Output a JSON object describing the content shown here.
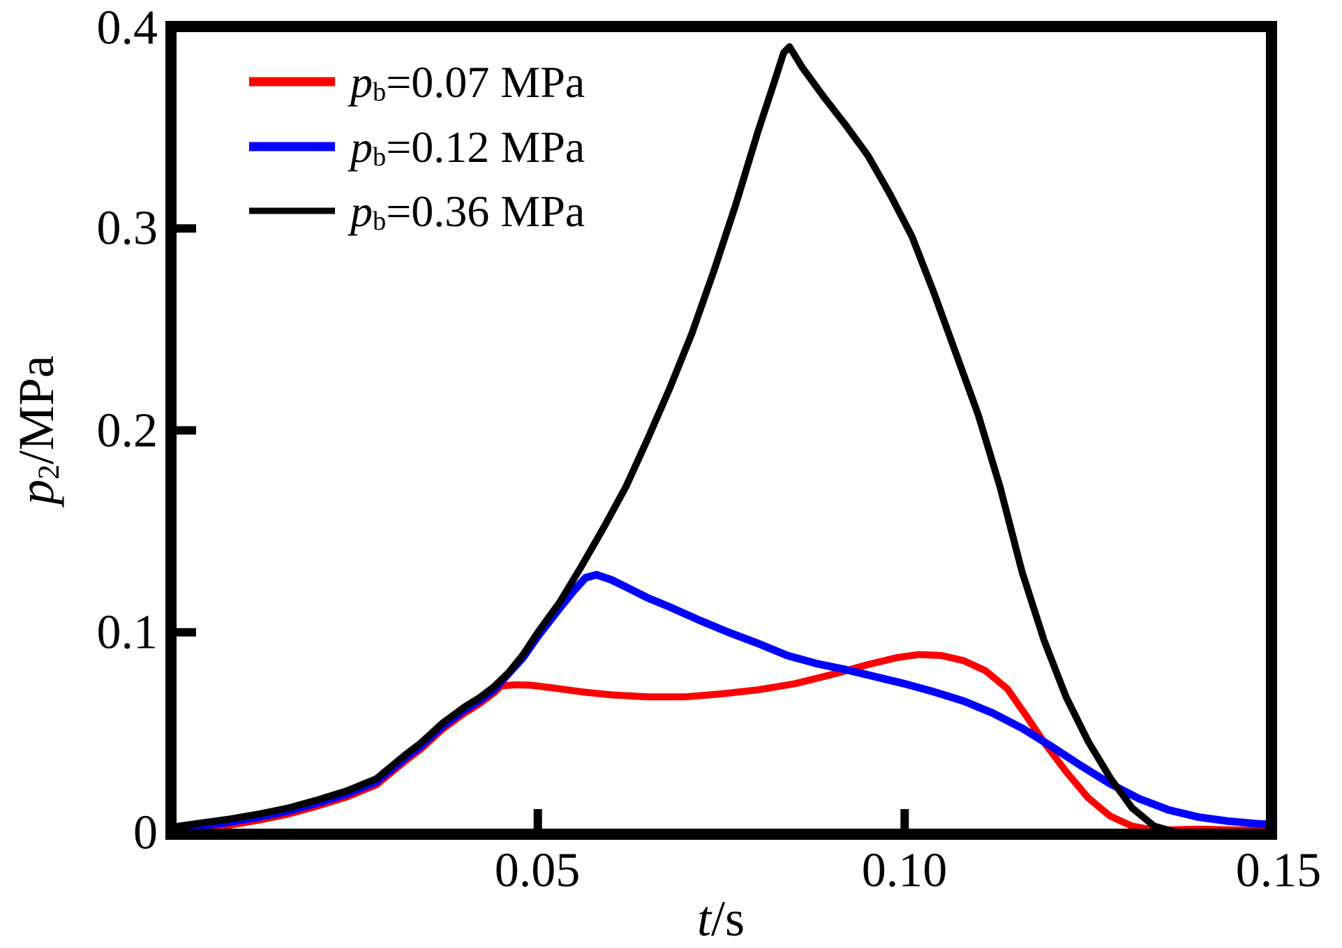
{
  "figure": {
    "background": "#ffffff",
    "frame_color": "#000000"
  },
  "axes": {
    "x_title": {
      "var": "t",
      "rest": "/s"
    },
    "y_title": {
      "var": "p",
      "sub": "2",
      "rest": "/MPa"
    }
  },
  "legend": {
    "items": [
      {
        "var": "p",
        "sub": "b",
        "rest": "=0.07 MPa",
        "color": "#ff0000"
      },
      {
        "var": "p",
        "sub": "b",
        "rest": "=0.12 MPa",
        "color": "#0000ff"
      },
      {
        "var": "p",
        "sub": "b",
        "rest": "=0.36 MPa",
        "color": "#000000"
      }
    ]
  },
  "chart_data": {
    "type": "line",
    "title": "",
    "xlabel": "t/s",
    "ylabel": "p2/MPa",
    "xlim": [
      0,
      0.15
    ],
    "ylim": [
      0,
      0.4
    ],
    "grid": false,
    "legend_position": "upper-left",
    "x_ticks": [
      {
        "value": 0.05,
        "label": "0.05",
        "stub": true
      },
      {
        "value": 0.1,
        "label": "0.10",
        "stub": true
      },
      {
        "value": 0.15,
        "label": "0.15",
        "stub": false
      }
    ],
    "y_ticks": [
      {
        "value": 0.0,
        "label": "0",
        "stub": false
      },
      {
        "value": 0.1,
        "label": "0.1",
        "stub": true
      },
      {
        "value": 0.2,
        "label": "0.2",
        "stub": true
      },
      {
        "value": 0.3,
        "label": "0.3",
        "stub": true
      },
      {
        "value": 0.4,
        "label": "0.4",
        "stub": false
      }
    ],
    "series": [
      {
        "name": "pb=0.07 MPa",
        "color": "#ff0000",
        "stroke_width": 10,
        "points": [
          [
            0.0,
            0.0005
          ],
          [
            0.004,
            0.0025
          ],
          [
            0.008,
            0.0045
          ],
          [
            0.012,
            0.007
          ],
          [
            0.016,
            0.01
          ],
          [
            0.02,
            0.014
          ],
          [
            0.024,
            0.0185
          ],
          [
            0.028,
            0.0245
          ],
          [
            0.032,
            0.0365
          ],
          [
            0.034,
            0.042
          ],
          [
            0.037,
            0.052
          ],
          [
            0.04,
            0.06
          ],
          [
            0.042,
            0.0645
          ],
          [
            0.044,
            0.07
          ],
          [
            0.045,
            0.0735
          ],
          [
            0.047,
            0.074
          ],
          [
            0.049,
            0.0738
          ],
          [
            0.052,
            0.0725
          ],
          [
            0.056,
            0.0705
          ],
          [
            0.06,
            0.069
          ],
          [
            0.065,
            0.068
          ],
          [
            0.07,
            0.068
          ],
          [
            0.075,
            0.0695
          ],
          [
            0.08,
            0.0715
          ],
          [
            0.085,
            0.0745
          ],
          [
            0.09,
            0.079
          ],
          [
            0.095,
            0.084
          ],
          [
            0.099,
            0.0875
          ],
          [
            0.102,
            0.089
          ],
          [
            0.105,
            0.0885
          ],
          [
            0.108,
            0.086
          ],
          [
            0.111,
            0.081
          ],
          [
            0.114,
            0.072
          ],
          [
            0.1165,
            0.059
          ],
          [
            0.119,
            0.0455
          ],
          [
            0.122,
            0.031
          ],
          [
            0.125,
            0.018
          ],
          [
            0.128,
            0.009
          ],
          [
            0.131,
            0.004
          ],
          [
            0.134,
            0.002
          ],
          [
            0.14,
            0.0025
          ],
          [
            0.146,
            0.002
          ],
          [
            0.15,
            0.0015
          ]
        ]
      },
      {
        "name": "pb=0.12 MPa",
        "color": "#0000ff",
        "stroke_width": 11,
        "points": [
          [
            0.0,
            0.002
          ],
          [
            0.004,
            0.004
          ],
          [
            0.008,
            0.006
          ],
          [
            0.012,
            0.0085
          ],
          [
            0.016,
            0.0115
          ],
          [
            0.02,
            0.0155
          ],
          [
            0.024,
            0.02
          ],
          [
            0.028,
            0.026
          ],
          [
            0.032,
            0.038
          ],
          [
            0.034,
            0.0435
          ],
          [
            0.037,
            0.0535
          ],
          [
            0.04,
            0.0615
          ],
          [
            0.042,
            0.066
          ],
          [
            0.044,
            0.0715
          ],
          [
            0.046,
            0.0795
          ],
          [
            0.048,
            0.0875
          ],
          [
            0.05,
            0.098
          ],
          [
            0.053,
            0.112
          ],
          [
            0.055,
            0.121
          ],
          [
            0.0565,
            0.127
          ],
          [
            0.058,
            0.1285
          ],
          [
            0.06,
            0.126
          ],
          [
            0.062,
            0.1225
          ],
          [
            0.065,
            0.117
          ],
          [
            0.068,
            0.1125
          ],
          [
            0.072,
            0.106
          ],
          [
            0.076,
            0.1
          ],
          [
            0.08,
            0.0945
          ],
          [
            0.084,
            0.0885
          ],
          [
            0.088,
            0.0845
          ],
          [
            0.092,
            0.0815
          ],
          [
            0.096,
            0.078
          ],
          [
            0.1,
            0.0745
          ],
          [
            0.104,
            0.0705
          ],
          [
            0.108,
            0.066
          ],
          [
            0.112,
            0.06
          ],
          [
            0.116,
            0.0525
          ],
          [
            0.12,
            0.0435
          ],
          [
            0.124,
            0.034
          ],
          [
            0.128,
            0.025
          ],
          [
            0.132,
            0.0175
          ],
          [
            0.136,
            0.012
          ],
          [
            0.14,
            0.0085
          ],
          [
            0.144,
            0.0065
          ],
          [
            0.148,
            0.0052
          ],
          [
            0.15,
            0.0048
          ]
        ]
      },
      {
        "name": "pb=0.36 MPa",
        "color": "#000000",
        "stroke_width": 10,
        "points": [
          [
            0.0,
            0.0035
          ],
          [
            0.004,
            0.0055
          ],
          [
            0.008,
            0.0075
          ],
          [
            0.012,
            0.01
          ],
          [
            0.016,
            0.013
          ],
          [
            0.02,
            0.017
          ],
          [
            0.024,
            0.0215
          ],
          [
            0.028,
            0.0275
          ],
          [
            0.032,
            0.0395
          ],
          [
            0.034,
            0.045
          ],
          [
            0.037,
            0.055
          ],
          [
            0.04,
            0.063
          ],
          [
            0.042,
            0.0675
          ],
          [
            0.044,
            0.073
          ],
          [
            0.046,
            0.08
          ],
          [
            0.048,
            0.089
          ],
          [
            0.05,
            0.1
          ],
          [
            0.053,
            0.115
          ],
          [
            0.056,
            0.133
          ],
          [
            0.059,
            0.152
          ],
          [
            0.062,
            0.172
          ],
          [
            0.065,
            0.196
          ],
          [
            0.068,
            0.221
          ],
          [
            0.071,
            0.248
          ],
          [
            0.074,
            0.279
          ],
          [
            0.077,
            0.312
          ],
          [
            0.08,
            0.348
          ],
          [
            0.082,
            0.37
          ],
          [
            0.0835,
            0.387
          ],
          [
            0.0843,
            0.39
          ],
          [
            0.086,
            0.38
          ],
          [
            0.089,
            0.365
          ],
          [
            0.092,
            0.351
          ],
          [
            0.095,
            0.336
          ],
          [
            0.098,
            0.317
          ],
          [
            0.101,
            0.296
          ],
          [
            0.104,
            0.268
          ],
          [
            0.107,
            0.238
          ],
          [
            0.11,
            0.208
          ],
          [
            0.113,
            0.172
          ],
          [
            0.116,
            0.13
          ],
          [
            0.119,
            0.096
          ],
          [
            0.122,
            0.068
          ],
          [
            0.125,
            0.046
          ],
          [
            0.128,
            0.028
          ],
          [
            0.131,
            0.013
          ],
          [
            0.134,
            0.004
          ],
          [
            0.137,
            0.001
          ],
          [
            0.15,
            0.001
          ]
        ]
      }
    ]
  }
}
